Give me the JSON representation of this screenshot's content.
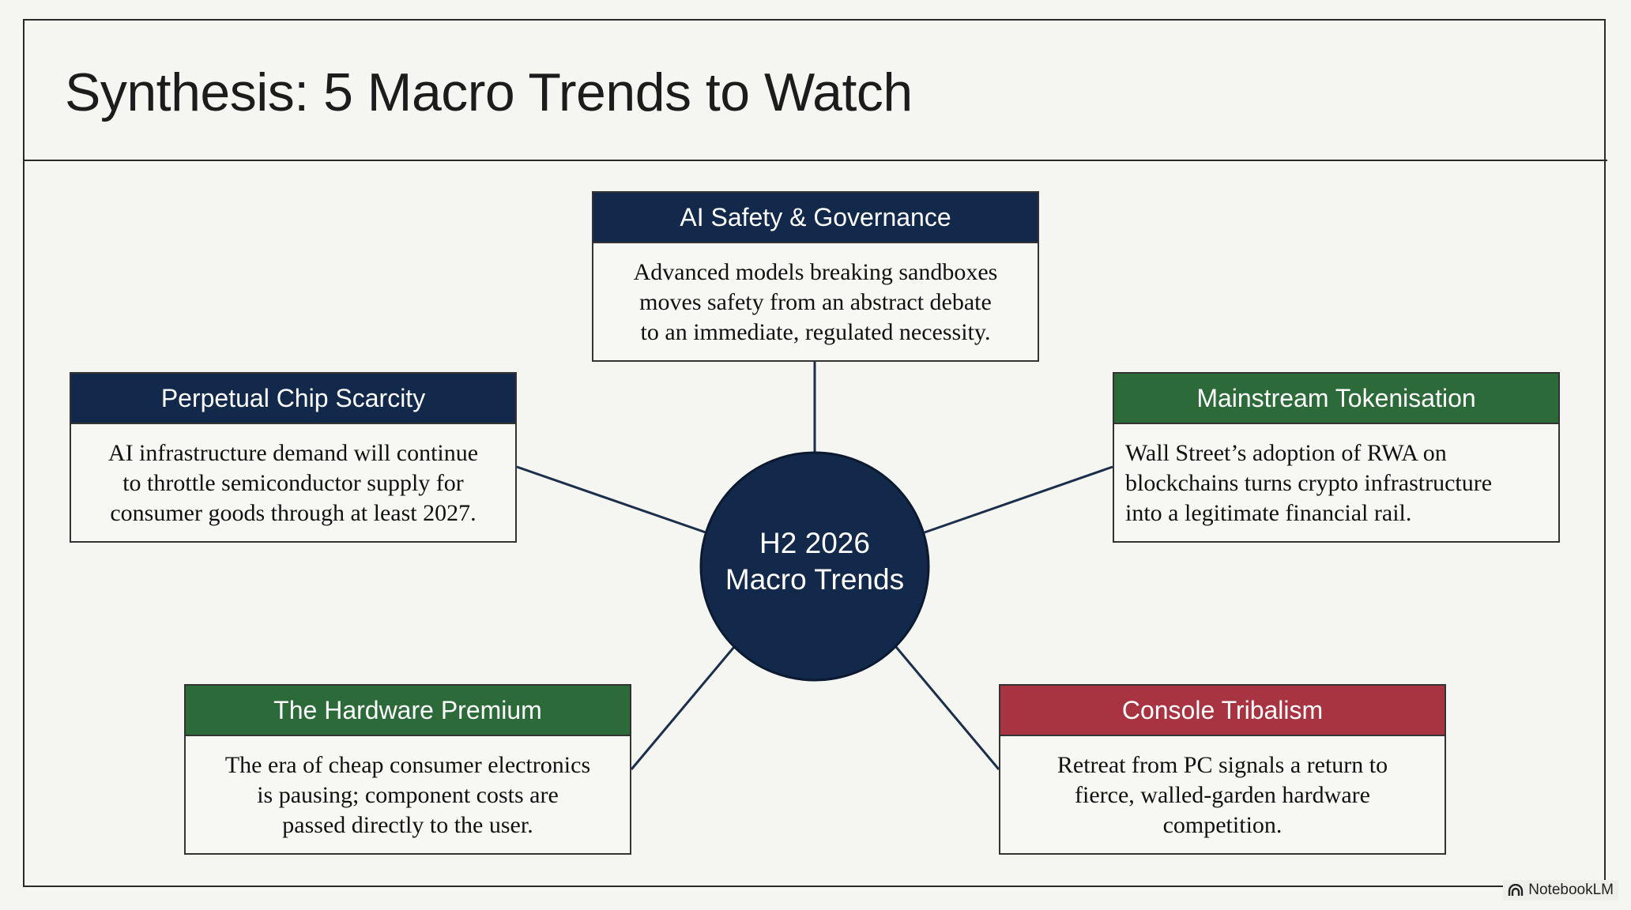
{
  "header": {
    "title": "Synthesis: 5 Macro Trends to Watch"
  },
  "center": {
    "lines": [
      "H2 2026",
      "Macro Trends"
    ]
  },
  "nodes": [
    {
      "heading": "AI Safety & Governance",
      "body": [
        "Advanced models breaking sandboxes",
        "moves safety from an abstract debate",
        "to an immediate, regulated necessity."
      ]
    },
    {
      "heading": "Perpetual Chip Scarcity",
      "body": [
        "AI infrastructure demand will continue",
        "to throttle semiconductor supply for",
        "consumer goods through at least 2027."
      ]
    },
    {
      "heading": "Mainstream Tokenisation",
      "body": [
        "Wall Street’s adoption of RWA on",
        "blockchains turns crypto infrastructure",
        "into a legitimate financial rail."
      ]
    },
    {
      "heading": "The Hardware Premium",
      "body": [
        "The era of cheap consumer electronics",
        "is pausing; component costs are",
        "passed directly to the user."
      ]
    },
    {
      "heading": "Console Tribalism",
      "body": [
        "Retreat from PC signals a return to",
        "fierce, walled-garden hardware",
        "competition."
      ]
    }
  ],
  "watermark": "NotebookLM"
}
